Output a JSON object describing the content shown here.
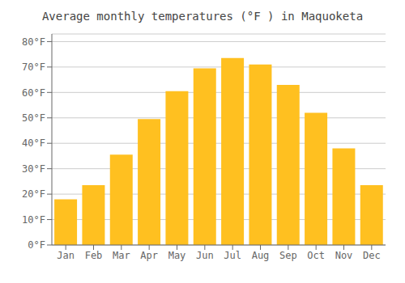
{
  "chart_data": {
    "type": "bar",
    "title": "Average monthly temperatures (°F ) in Maquoketa",
    "categories": [
      "Jan",
      "Feb",
      "Mar",
      "Apr",
      "May",
      "Jun",
      "Jul",
      "Aug",
      "Sep",
      "Oct",
      "Nov",
      "Dec"
    ],
    "values": [
      18,
      23.5,
      35.5,
      49.5,
      60.5,
      69.5,
      73.5,
      71,
      63,
      52,
      38,
      23.5
    ],
    "color": "#FFC020",
    "ylim": [
      0,
      83
    ],
    "yticks": [
      {
        "value": 0,
        "label": "0°F"
      },
      {
        "value": 10,
        "label": "10°F"
      },
      {
        "value": 20,
        "label": "20°F"
      },
      {
        "value": 30,
        "label": "30°F"
      },
      {
        "value": 40,
        "label": "40°F"
      },
      {
        "value": 50,
        "label": "50°F"
      },
      {
        "value": 60,
        "label": "60°F"
      },
      {
        "value": 70,
        "label": "70°F"
      },
      {
        "value": 80,
        "label": "80°F"
      }
    ],
    "grid": true
  }
}
